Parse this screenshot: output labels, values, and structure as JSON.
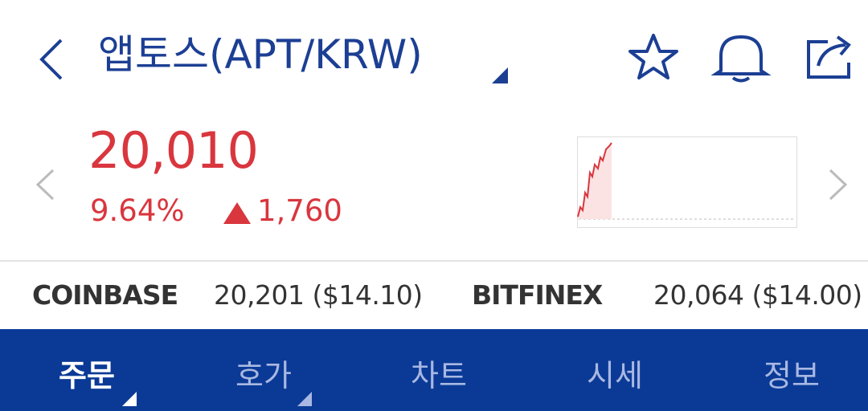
{
  "header": {
    "title": "앱토스(APT/KRW)"
  },
  "price": {
    "value": "20,010",
    "change_percent": "9.64%",
    "change": "1,760"
  },
  "exchanges": [
    {
      "name": "COINBASE",
      "price": "20,201 ($14.10)"
    },
    {
      "name": "BITFINEX",
      "price": "20,064 ($14.00)"
    }
  ],
  "tabs": [
    "주문",
    "호가",
    "차트",
    "시세",
    "정보"
  ]
}
